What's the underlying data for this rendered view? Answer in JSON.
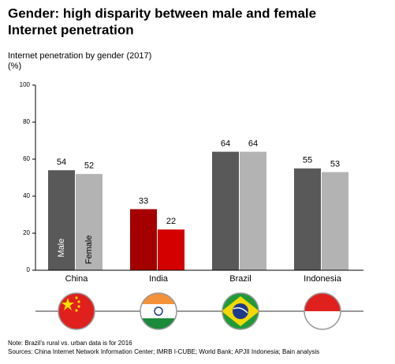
{
  "chart_data": {
    "type": "bar",
    "title": [
      "Gender: high disparity between male and female",
      "Internet penetration"
    ],
    "subtitle": "Internet penetration by gender (2017)",
    "unit": "(%)",
    "categories": [
      "China",
      "India",
      "Brazil",
      "Indonesia"
    ],
    "series": [
      {
        "name": "Male",
        "colors": [
          "#595959",
          "#a50000",
          "#595959",
          "#595959"
        ],
        "values": [
          54,
          33,
          64,
          55
        ]
      },
      {
        "name": "Female",
        "colors": [
          "#b3b3b3",
          "#d40000",
          "#b3b3b3",
          "#b3b3b3"
        ],
        "values": [
          52,
          22,
          64,
          53
        ]
      }
    ],
    "ylim": [
      0,
      100
    ],
    "yticks": [
      0,
      20,
      40,
      60,
      80,
      100
    ],
    "notes": [
      "Note: Brazil's rural vs. urban data is for 2016",
      "Sources: China Internet Network Information Center; IMRB I-CUBE; World Bank; APJII Indonesia; Bain analysis"
    ]
  }
}
